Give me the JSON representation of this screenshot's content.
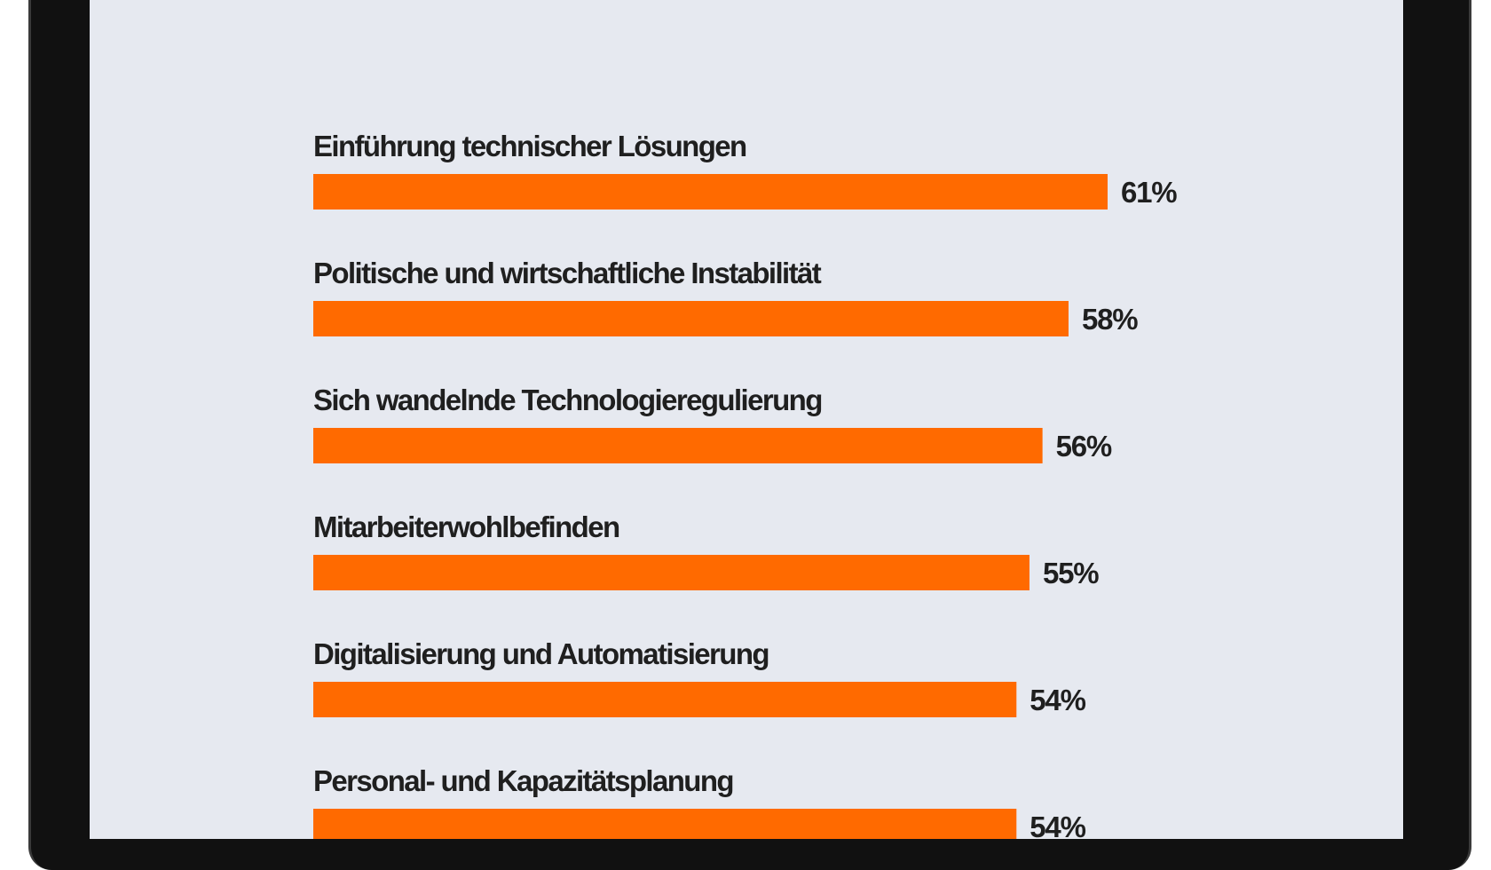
{
  "colors": {
    "bar": "#ff6a00",
    "text": "#1f1f1f",
    "background": "#e6e9f0",
    "frame": "#111111"
  },
  "chart_data": {
    "type": "bar",
    "orientation": "horizontal",
    "title": "",
    "xlabel": "",
    "ylabel": "",
    "xlim": [
      0,
      65
    ],
    "grid": false,
    "categories": [
      "Einführung technischer Lösungen",
      "Politische und wirtschaftliche Instabilität",
      "Sich wandelnde Technologieregulierung",
      "Mitarbeiterwohlbefinden",
      "Digitalisierung und Automatisierung",
      "Personal- und Kapazitätsplanung"
    ],
    "values": [
      61,
      58,
      56,
      55,
      54,
      54
    ],
    "value_labels": [
      "61%",
      "58%",
      "56%",
      "55%",
      "54%",
      "54%"
    ]
  }
}
